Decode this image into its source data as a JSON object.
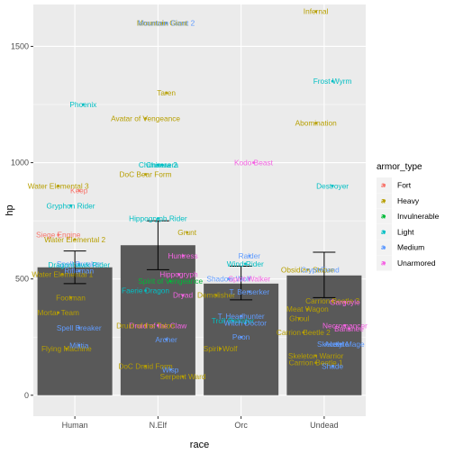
{
  "chart_data": {
    "type": "bar",
    "title": "",
    "xlabel": "race",
    "ylabel": "hp",
    "categories": [
      "Human",
      "N.Elf",
      "Orc",
      "Undead"
    ],
    "bars": [
      {
        "race": "Human",
        "mean": 550,
        "ci_low": 480,
        "ci_high": 620
      },
      {
        "race": "N.Elf",
        "mean": 645,
        "ci_low": 540,
        "ci_high": 750
      },
      {
        "race": "Orc",
        "mean": 480,
        "ci_low": 410,
        "ci_high": 555
      },
      {
        "race": "Undead",
        "mean": 515,
        "ci_low": 420,
        "ci_high": 615
      }
    ],
    "ylim": [
      -90,
      1680
    ],
    "yticks": [
      0,
      500,
      1000,
      1500
    ],
    "xticks": [
      "Human",
      "N.Elf",
      "Orc",
      "Undead"
    ],
    "grid": true,
    "legend": {
      "title": "armor_type",
      "position": "right",
      "entries": [
        "Fort",
        "Heavy",
        "Invulnerable",
        "Light",
        "Medium",
        "Unarmored"
      ],
      "colors": {
        "Fort": "#F8766D",
        "Heavy": "#B79F00",
        "Invulnerable": "#00BA38",
        "Light": "#00BFC4",
        "Medium": "#619CFF",
        "Unarmored": "#F564E3"
      }
    },
    "points": [
      {
        "race": "Human",
        "x_offset": 0.05,
        "hp": 880,
        "label": "Keep",
        "armor": "Fort"
      },
      {
        "race": "Human",
        "x_offset": -0.2,
        "hp": 690,
        "label": "Siege Engine",
        "armor": "Fort"
      },
      {
        "race": "Human",
        "x_offset": -0.2,
        "hp": 900,
        "label": "Water Elemental 3",
        "armor": "Heavy"
      },
      {
        "race": "Human",
        "x_offset": 0.0,
        "hp": 670,
        "label": "Water Elemental 2",
        "armor": "Heavy"
      },
      {
        "race": "Human",
        "x_offset": -0.15,
        "hp": 520,
        "label": "Water Elemental 1",
        "armor": "Heavy"
      },
      {
        "race": "Human",
        "x_offset": -0.05,
        "hp": 420,
        "label": "Footman",
        "armor": "Heavy"
      },
      {
        "race": "Human",
        "x_offset": -0.2,
        "hp": 355,
        "label": "Mortar Team",
        "armor": "Heavy"
      },
      {
        "race": "Human",
        "x_offset": -0.1,
        "hp": 200,
        "label": "Flying Machine",
        "armor": "Heavy"
      },
      {
        "race": "Human",
        "x_offset": 0.05,
        "hp": 215,
        "label": "Militia",
        "armor": "Medium"
      },
      {
        "race": "Human",
        "x_offset": 0.05,
        "hp": 290,
        "label": "Spell Breaker",
        "armor": "Medium"
      },
      {
        "race": "Human",
        "x_offset": 0.05,
        "hp": 565,
        "label": "Spell Breaker",
        "armor": "Medium"
      },
      {
        "race": "Human",
        "x_offset": 0.1,
        "hp": 1250,
        "label": "Phoenix",
        "armor": "Light"
      },
      {
        "race": "Human",
        "x_offset": -0.05,
        "hp": 815,
        "label": "Gryphon Rider",
        "armor": "Light"
      },
      {
        "race": "Human",
        "x_offset": 0.05,
        "hp": 535,
        "label": "Rifleman",
        "armor": "Medium"
      },
      {
        "race": "Human",
        "x_offset": 0.05,
        "hp": 560,
        "label": "Dragonhawk Rider",
        "armor": "Light"
      },
      {
        "race": "N.Elf",
        "x_offset": 0.05,
        "hp": 1600,
        "label": "Mountain Giant",
        "armor": "Heavy"
      },
      {
        "race": "N.Elf",
        "x_offset": 0.1,
        "hp": 1600,
        "label": "Mountain Giant 2",
        "armor": "Medium"
      },
      {
        "race": "N.Elf",
        "x_offset": 0.1,
        "hp": 1300,
        "label": "Taren",
        "armor": "Heavy"
      },
      {
        "race": "N.Elf",
        "x_offset": -0.15,
        "hp": 1190,
        "label": "Avatar of Vengeance",
        "armor": "Heavy"
      },
      {
        "race": "N.Elf",
        "x_offset": 0.05,
        "hp": 990,
        "label": "Chimaera",
        "armor": "Light"
      },
      {
        "race": "N.Elf",
        "x_offset": 0.0,
        "hp": 990,
        "label": "Chimaera 2",
        "armor": "Light"
      },
      {
        "race": "N.Elf",
        "x_offset": -0.15,
        "hp": 950,
        "label": "DoC Bear Form",
        "armor": "Heavy"
      },
      {
        "race": "N.Elf",
        "x_offset": 0.0,
        "hp": 760,
        "label": "Hippogryph Rider",
        "armor": "Light"
      },
      {
        "race": "N.Elf",
        "x_offset": 0.35,
        "hp": 700,
        "label": "Grunt",
        "armor": "Heavy"
      },
      {
        "race": "N.Elf",
        "x_offset": 0.3,
        "hp": 600,
        "label": "Huntress",
        "armor": "Unarmored"
      },
      {
        "race": "N.Elf",
        "x_offset": 0.25,
        "hp": 520,
        "label": "Hippogryph",
        "armor": "Unarmored"
      },
      {
        "race": "N.Elf",
        "x_offset": 0.15,
        "hp": 490,
        "label": "Spirit of Vengeance",
        "armor": "Invulnerable"
      },
      {
        "race": "N.Elf",
        "x_offset": -0.15,
        "hp": 450,
        "label": "Faerie Dragon",
        "armor": "Light"
      },
      {
        "race": "N.Elf",
        "x_offset": 0.3,
        "hp": 430,
        "label": "Dryad",
        "armor": "Unarmored"
      },
      {
        "race": "N.Elf",
        "x_offset": 0.0,
        "hp": 300,
        "label": "Druid of the Claw",
        "armor": "Unarmored"
      },
      {
        "race": "N.Elf",
        "x_offset": -0.15,
        "hp": 300,
        "label": "Druid of the Talon",
        "armor": "Heavy"
      },
      {
        "race": "N.Elf",
        "x_offset": 0.1,
        "hp": 240,
        "label": "Archer",
        "armor": "Medium"
      },
      {
        "race": "N.Elf",
        "x_offset": -0.15,
        "hp": 125,
        "label": "DoC Druid Form",
        "armor": "Heavy"
      },
      {
        "race": "N.Elf",
        "x_offset": 0.15,
        "hp": 110,
        "label": "Wisp",
        "armor": "Medium"
      },
      {
        "race": "N.Elf",
        "x_offset": 0.3,
        "hp": 80,
        "label": "Serpent Ward",
        "armor": "Heavy"
      },
      {
        "race": "Orc",
        "x_offset": 0.15,
        "hp": 1000,
        "label": "Kodo Beast",
        "armor": "Unarmored"
      },
      {
        "race": "Orc",
        "x_offset": 0.1,
        "hp": 600,
        "label": "Raider",
        "armor": "Medium"
      },
      {
        "race": "Orc",
        "x_offset": 0.05,
        "hp": 565,
        "label": "Wind Rider",
        "armor": "Light"
      },
      {
        "race": "Orc",
        "x_offset": -0.15,
        "hp": 500,
        "label": "Shadow Wolf",
        "armor": "Medium"
      },
      {
        "race": "Orc",
        "x_offset": -0.3,
        "hp": 430,
        "label": "Demolisher",
        "armor": "Heavy"
      },
      {
        "race": "Orc",
        "x_offset": 0.1,
        "hp": 445,
        "label": "T. Berserker",
        "armor": "Medium"
      },
      {
        "race": "Orc",
        "x_offset": 0.0,
        "hp": 340,
        "label": "T. Headhunter",
        "armor": "Medium"
      },
      {
        "race": "Orc",
        "x_offset": -0.1,
        "hp": 320,
        "label": "Troll Batrider",
        "armor": "Light"
      },
      {
        "race": "Orc",
        "x_offset": 0.05,
        "hp": 310,
        "label": "Witch Doctor",
        "armor": "Medium"
      },
      {
        "race": "Orc",
        "x_offset": 0.1,
        "hp": 500,
        "label": "Spirit Walker",
        "armor": "Unarmored"
      },
      {
        "race": "Orc",
        "x_offset": 0.0,
        "hp": 250,
        "label": "Peon",
        "armor": "Medium"
      },
      {
        "race": "Orc",
        "x_offset": -0.25,
        "hp": 200,
        "label": "Spirit Wolf",
        "armor": "Heavy"
      },
      {
        "race": "Undead",
        "x_offset": -0.1,
        "hp": 1650,
        "label": "Infernal",
        "armor": "Heavy"
      },
      {
        "race": "Undead",
        "x_offset": 0.1,
        "hp": 1350,
        "label": "Frost Wyrm",
        "armor": "Light"
      },
      {
        "race": "Undead",
        "x_offset": -0.1,
        "hp": 1170,
        "label": "Abomination",
        "armor": "Heavy"
      },
      {
        "race": "Undead",
        "x_offset": 0.1,
        "hp": 900,
        "label": "Destroyer",
        "armor": "Light"
      },
      {
        "race": "Undead",
        "x_offset": -0.2,
        "hp": 540,
        "label": "Obsidian Statue",
        "armor": "Heavy"
      },
      {
        "race": "Undead",
        "x_offset": -0.05,
        "hp": 540,
        "label": "Crypt Fiend",
        "armor": "Medium"
      },
      {
        "race": "Undead",
        "x_offset": 0.1,
        "hp": 405,
        "label": "Carrion Beetle 3",
        "armor": "Heavy"
      },
      {
        "race": "Undead",
        "x_offset": 0.25,
        "hp": 400,
        "label": "Gargoyle",
        "armor": "Unarmored"
      },
      {
        "race": "Undead",
        "x_offset": -0.2,
        "hp": 370,
        "label": "Meat Wagon",
        "armor": "Heavy"
      },
      {
        "race": "Undead",
        "x_offset": -0.3,
        "hp": 330,
        "label": "Ghoul",
        "armor": "Heavy"
      },
      {
        "race": "Undead",
        "x_offset": 0.25,
        "hp": 300,
        "label": "Necromancer",
        "armor": "Unarmored"
      },
      {
        "race": "Undead",
        "x_offset": 0.3,
        "hp": 285,
        "label": "Banshee",
        "armor": "Unarmored"
      },
      {
        "race": "Undead",
        "x_offset": -0.25,
        "hp": 270,
        "label": "Carrion Beetle 2",
        "armor": "Heavy"
      },
      {
        "race": "Undead",
        "x_offset": 0.15,
        "hp": 220,
        "label": "Acolyte",
        "armor": "Medium"
      },
      {
        "race": "Undead",
        "x_offset": 0.2,
        "hp": 220,
        "label": "Skeletal Mage",
        "armor": "Medium"
      },
      {
        "race": "Undead",
        "x_offset": -0.1,
        "hp": 170,
        "label": "Skeleton Warrior",
        "armor": "Heavy"
      },
      {
        "race": "Undead",
        "x_offset": -0.1,
        "hp": 140,
        "label": "Carrion Beetle 1",
        "armor": "Heavy"
      },
      {
        "race": "Undead",
        "x_offset": 0.1,
        "hp": 125,
        "label": "Shade",
        "armor": "Medium"
      }
    ]
  }
}
